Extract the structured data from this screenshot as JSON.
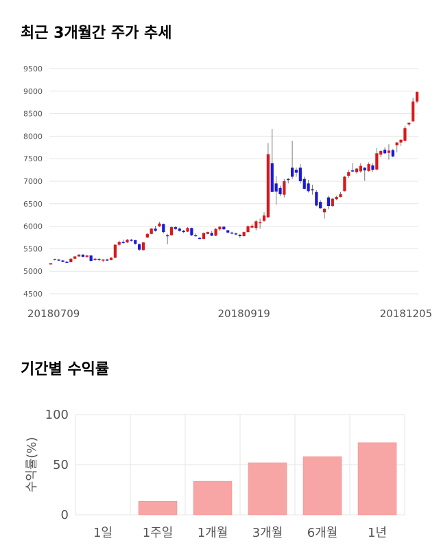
{
  "titles": {
    "price_trend": "최근 3개월간 주가 추세",
    "period_returns": "기간별 수익률"
  },
  "colors": {
    "up": "#d7191c",
    "down": "#1a1ad7",
    "wick": "#777777",
    "grid": "#e5e5e5",
    "bar": "#f8a5a5",
    "bar_border": "#ee8a8a"
  },
  "chart_data": [
    {
      "type": "candlestick",
      "title": "최근 3개월간 주가 추세",
      "ylim": [
        4500,
        9500
      ],
      "yticks": [
        4500,
        5000,
        5500,
        6000,
        6500,
        7000,
        7500,
        8000,
        8500,
        9000,
        9500
      ],
      "x_labels": [
        {
          "label": "20180709",
          "index": 0
        },
        {
          "label": "20180919",
          "index": 48
        },
        {
          "label": "20181205",
          "index": 101
        }
      ],
      "grid": "horizontal",
      "candles": [
        [
          5150,
          5180,
          5150,
          5180
        ],
        [
          5250,
          5280,
          5240,
          5270
        ],
        [
          5260,
          5270,
          5230,
          5240
        ],
        [
          5240,
          5250,
          5200,
          5210
        ],
        [
          5210,
          5230,
          5190,
          5200
        ],
        [
          5200,
          5290,
          5200,
          5280
        ],
        [
          5280,
          5340,
          5270,
          5330
        ],
        [
          5330,
          5380,
          5320,
          5370
        ],
        [
          5370,
          5380,
          5310,
          5320
        ],
        [
          5320,
          5360,
          5300,
          5350
        ],
        [
          5350,
          5360,
          5220,
          5230
        ],
        [
          5250,
          5300,
          5230,
          5280
        ],
        [
          5270,
          5290,
          5220,
          5250
        ],
        [
          5240,
          5270,
          5200,
          5260
        ],
        [
          5260,
          5280,
          5230,
          5250
        ],
        [
          5250,
          5320,
          5240,
          5300
        ],
        [
          5300,
          5600,
          5290,
          5590
        ],
        [
          5590,
          5680,
          5560,
          5650
        ],
        [
          5650,
          5700,
          5610,
          5630
        ],
        [
          5640,
          5720,
          5630,
          5700
        ],
        [
          5700,
          5720,
          5660,
          5680
        ],
        [
          5690,
          5700,
          5590,
          5610
        ],
        [
          5600,
          5620,
          5450,
          5480
        ],
        [
          5470,
          5650,
          5460,
          5640
        ],
        [
          5750,
          5850,
          5740,
          5830
        ],
        [
          5830,
          5960,
          5820,
          5950
        ],
        [
          5950,
          6010,
          5880,
          5900
        ],
        [
          6000,
          6100,
          5980,
          6060
        ],
        [
          6050,
          6060,
          5840,
          5870
        ],
        [
          5800,
          5830,
          5600,
          5780
        ],
        [
          5800,
          6000,
          5790,
          5980
        ],
        [
          5980,
          6000,
          5920,
          5940
        ],
        [
          5950,
          5970,
          5880,
          5900
        ],
        [
          5900,
          5920,
          5850,
          5870
        ],
        [
          5880,
          5980,
          5870,
          5960
        ],
        [
          5960,
          5970,
          5780,
          5800
        ],
        [
          5800,
          5840,
          5770,
          5780
        ],
        [
          5740,
          5760,
          5710,
          5730
        ],
        [
          5720,
          5860,
          5710,
          5850
        ],
        [
          5830,
          5880,
          5820,
          5870
        ],
        [
          5850,
          5900,
          5780,
          5790
        ],
        [
          5790,
          5960,
          5780,
          5940
        ],
        [
          5930,
          6000,
          5900,
          5990
        ],
        [
          5990,
          6000,
          5920,
          5930
        ],
        [
          5910,
          5920,
          5840,
          5860
        ],
        [
          5860,
          5880,
          5820,
          5840
        ],
        [
          5840,
          5860,
          5800,
          5820
        ],
        [
          5810,
          5830,
          5740,
          5780
        ],
        [
          5780,
          5880,
          5770,
          5870
        ],
        [
          5870,
          6020,
          5860,
          6000
        ],
        [
          5970,
          6050,
          5950,
          6010
        ],
        [
          5960,
          6140,
          5910,
          6110
        ],
        [
          6080,
          6170,
          5950,
          6090
        ],
        [
          6120,
          6310,
          6100,
          6240
        ],
        [
          6200,
          7850,
          6180,
          7600
        ],
        [
          7400,
          8160,
          6800,
          6760
        ],
        [
          6950,
          7120,
          6480,
          6770
        ],
        [
          6850,
          6900,
          6670,
          6710
        ],
        [
          6700,
          7050,
          6640,
          7000
        ],
        [
          7050,
          7070,
          6950,
          7040
        ],
        [
          7300,
          7900,
          7050,
          7100
        ],
        [
          7250,
          7300,
          7100,
          7190
        ],
        [
          7300,
          7380,
          6950,
          7000
        ],
        [
          7050,
          7100,
          6820,
          6830
        ],
        [
          6950,
          7030,
          6750,
          6780
        ],
        [
          6820,
          6920,
          6700,
          6810
        ],
        [
          6760,
          6800,
          6440,
          6460
        ],
        [
          6540,
          6580,
          6390,
          6400
        ],
        [
          6310,
          6400,
          6170,
          6390
        ],
        [
          6640,
          6680,
          6380,
          6450
        ],
        [
          6450,
          6630,
          6430,
          6610
        ],
        [
          6600,
          6680,
          6580,
          6650
        ],
        [
          6650,
          6760,
          6640,
          6710
        ],
        [
          6780,
          7120,
          6770,
          7100
        ],
        [
          7120,
          7250,
          7070,
          7200
        ],
        [
          7240,
          7400,
          7200,
          7220
        ],
        [
          7200,
          7290,
          7170,
          7280
        ],
        [
          7220,
          7400,
          7190,
          7340
        ],
        [
          7300,
          7310,
          7010,
          7240
        ],
        [
          7230,
          7420,
          7210,
          7380
        ],
        [
          7350,
          7400,
          7210,
          7250
        ],
        [
          7260,
          7740,
          7240,
          7620
        ],
        [
          7590,
          7700,
          7530,
          7670
        ],
        [
          7700,
          7750,
          7600,
          7620
        ],
        [
          7630,
          7820,
          7480,
          7680
        ],
        [
          7690,
          7720,
          7530,
          7550
        ],
        [
          7800,
          7870,
          7640,
          7860
        ],
        [
          7860,
          7930,
          7780,
          7920
        ],
        [
          7900,
          8230,
          7880,
          8180
        ],
        [
          8260,
          8300,
          8230,
          8300
        ],
        [
          8330,
          8850,
          8320,
          8770
        ],
        [
          8770,
          9000,
          8730,
          8980
        ]
      ]
    },
    {
      "type": "bar",
      "title": "기간별 수익률",
      "categories": [
        "1일",
        "1주일",
        "1개월",
        "3개월",
        "6개월",
        "1년"
      ],
      "values": [
        0,
        13.5,
        33.5,
        52,
        58,
        72
      ],
      "ylabel": "수익률(%)",
      "ylim": [
        0,
        100
      ],
      "yticks": [
        0,
        50,
        100
      ],
      "grid": "both"
    }
  ]
}
